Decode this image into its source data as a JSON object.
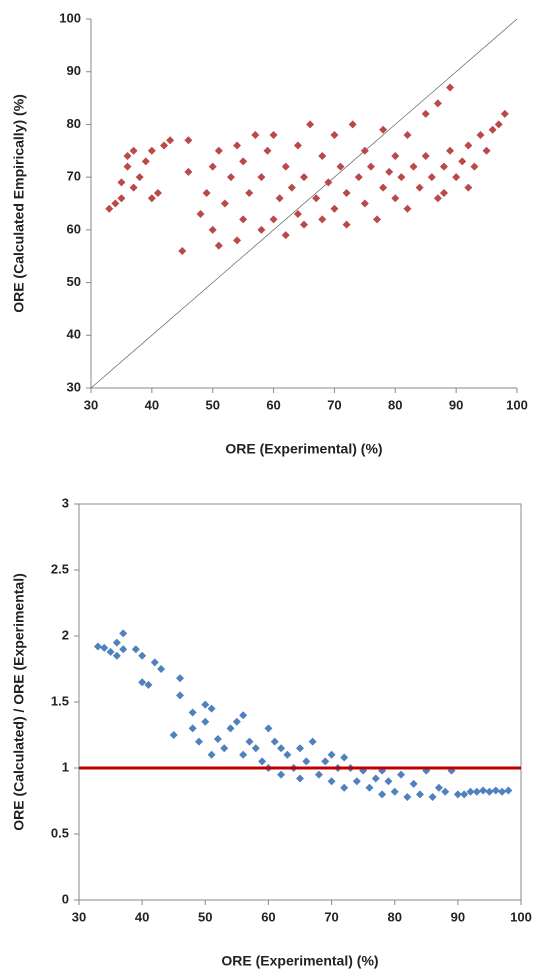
{
  "chart_data": [
    {
      "type": "scatter",
      "x_label": "ORE (Experimental) (%)",
      "y_label": "ORE (Calculated Empirically) (%)",
      "color": "#b94a48",
      "marker": "diamond",
      "identity_line": true,
      "frame": false,
      "xlim": [
        30,
        100
      ],
      "xticks": [
        30,
        40,
        50,
        60,
        70,
        80,
        90,
        100
      ],
      "ylim": [
        30,
        100
      ],
      "yticks": [
        30,
        40,
        50,
        60,
        70,
        80,
        90,
        100
      ],
      "x": [
        33,
        34,
        35,
        35,
        36,
        36,
        37,
        37,
        38,
        39,
        40,
        40,
        41,
        42,
        43,
        45,
        46,
        46,
        48,
        49,
        50,
        50,
        51,
        51,
        52,
        53,
        54,
        54,
        55,
        55,
        56,
        57,
        58,
        58,
        59,
        60,
        60,
        61,
        62,
        62,
        63,
        64,
        64,
        65,
        65,
        66,
        67,
        68,
        68,
        69,
        70,
        70,
        71,
        72,
        72,
        73,
        74,
        75,
        75,
        76,
        77,
        78,
        78,
        79,
        80,
        80,
        81,
        82,
        82,
        83,
        84,
        85,
        85,
        86,
        87,
        87,
        88,
        89,
        89,
        90,
        91,
        92,
        93,
        94,
        95,
        96,
        97,
        98,
        92,
        88
      ],
      "values": [
        64,
        65,
        66,
        69,
        72,
        74,
        68,
        75,
        70,
        73,
        75,
        66,
        67,
        76,
        77,
        56,
        71,
        77,
        63,
        67,
        60,
        72,
        57,
        75,
        65,
        70,
        58,
        76,
        62,
        73,
        67,
        78,
        60,
        70,
        75,
        62,
        78,
        66,
        59,
        72,
        68,
        63,
        76,
        61,
        70,
        80,
        66,
        62,
        74,
        69,
        64,
        78,
        72,
        61,
        67,
        80,
        70,
        65,
        75,
        72,
        62,
        68,
        79,
        71,
        66,
        74,
        70,
        64,
        78,
        72,
        68,
        82,
        74,
        70,
        84,
        66,
        72,
        87,
        75,
        70,
        73,
        76,
        72,
        78,
        75,
        79,
        80,
        82,
        68,
        67
      ]
    },
    {
      "type": "scatter",
      "x_label": "ORE (Experimental) (%)",
      "y_label": "ORE (Calculated) / ORE (Experimental)",
      "color": "#4f81bd",
      "marker": "diamond",
      "hline": 1,
      "hline_color": "#c00000",
      "frame": true,
      "xlim": [
        30,
        100
      ],
      "xticks": [
        30,
        40,
        50,
        60,
        70,
        80,
        90,
        100
      ],
      "ylim": [
        0,
        3
      ],
      "yticks": [
        0,
        0.5,
        1,
        1.5,
        2,
        2.5,
        3
      ],
      "x": [
        33,
        34,
        35,
        36,
        36,
        37,
        37,
        39,
        40,
        40,
        41,
        42,
        43,
        45,
        46,
        46,
        48,
        48,
        49,
        50,
        50,
        51,
        51,
        52,
        53,
        54,
        55,
        56,
        56,
        57,
        58,
        59,
        60,
        60,
        61,
        62,
        62,
        63,
        64,
        65,
        65,
        66,
        67,
        68,
        69,
        70,
        70,
        71,
        72,
        72,
        73,
        74,
        75,
        76,
        77,
        78,
        78,
        79,
        80,
        81,
        82,
        83,
        84,
        85,
        86,
        87,
        88,
        89,
        90,
        91,
        92,
        93,
        94,
        95,
        96,
        97,
        98
      ],
      "values": [
        1.92,
        1.91,
        1.88,
        1.95,
        1.85,
        2.02,
        1.9,
        1.9,
        1.85,
        1.65,
        1.63,
        1.8,
        1.75,
        1.25,
        1.68,
        1.55,
        1.3,
        1.42,
        1.2,
        1.48,
        1.35,
        1.1,
        1.45,
        1.22,
        1.15,
        1.3,
        1.35,
        1.4,
        1.1,
        1.2,
        1.15,
        1.05,
        1.3,
        1.0,
        1.2,
        0.95,
        1.15,
        1.1,
        1.0,
        1.15,
        0.92,
        1.05,
        1.2,
        0.95,
        1.05,
        0.9,
        1.1,
        1.0,
        0.85,
        1.08,
        1.0,
        0.9,
        0.98,
        0.85,
        0.92,
        0.8,
        0.98,
        0.9,
        0.82,
        0.95,
        0.78,
        0.88,
        0.8,
        0.98,
        0.78,
        0.85,
        0.82,
        0.98,
        0.8,
        0.8,
        0.82,
        0.82,
        0.83,
        0.82,
        0.83,
        0.82,
        0.83
      ]
    }
  ]
}
